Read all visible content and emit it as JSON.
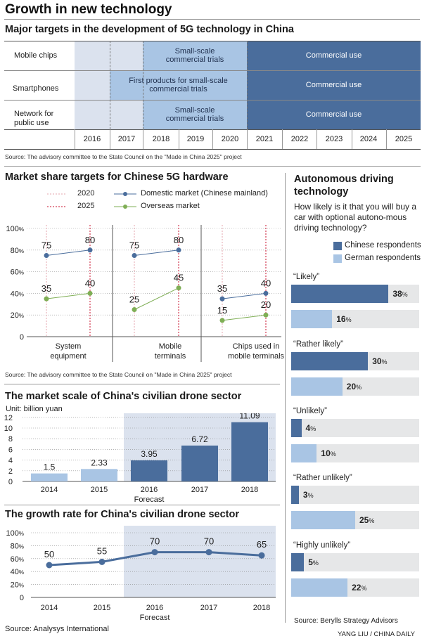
{
  "title": "Growth in new technology",
  "g5": {
    "title": "Major targets in the development of 5G technology in China",
    "years": [
      "2016",
      "2017",
      "2018",
      "2019",
      "2020",
      "2021",
      "2022",
      "2023",
      "2024",
      "2025"
    ],
    "rows": [
      {
        "label": "Mobile chips",
        "stage1": "Small-scale\ncommercial trials",
        "stage2": "Commercial use"
      },
      {
        "label": "Smartphones",
        "stage1": "First products for small-scale\ncommercial trials",
        "stage2": "Commercial use"
      },
      {
        "label": "Network for\npublic use",
        "stage1": "Small-scale\ncommercial trials",
        "stage2": "Commercial use"
      }
    ],
    "source": "Source: The advisory committee to the State Council on the \"Made in China 2025\" project"
  },
  "market": {
    "title": "Market share targets for Chinese 5G hardware",
    "legend": {
      "y2020": "2020",
      "y2025": "2025",
      "domestic": "Domestic market (Chinese mainland)",
      "overseas": "Overseas market"
    },
    "source": "Source: The advisory committee to the State Council on \"Made in China 2025\" project"
  },
  "drone": {
    "title": "The market scale of China's civilian drone sector",
    "unit": "Unit: billion yuan",
    "forecast": "Forecast"
  },
  "growth": {
    "title": "The growth rate for China's civilian drone sector",
    "forecast": "Forecast",
    "source": "Source: Analysys International"
  },
  "auto": {
    "title": "Autonomous driving technology",
    "question": "How likely is it that you will buy a car with optional autono-mous driving technology?",
    "legend_cn": "Chinese respondents",
    "legend_de": "German respondents",
    "source": "Source: Berylls Strategy Advisors"
  },
  "credit": "YANG LIU / CHINA DAILY",
  "colors": {
    "dark": "#4a6d9c",
    "light": "#a9c5e4",
    "lighter": "#c7d6ea",
    "shade": "#dbe2ee",
    "green": "#7fae55",
    "red": "#c8102e"
  },
  "chart_data": [
    {
      "type": "line",
      "title": "Market share targets for Chinese 5G hardware",
      "categories": [
        "System\nequipment",
        "Mobile\nterminals",
        "Chips used in\nmobile terminals"
      ],
      "points": [
        "2020",
        "2025"
      ],
      "series": [
        {
          "name": "Domestic market (Chinese mainland)",
          "values": [
            [
              75,
              80
            ],
            [
              75,
              80
            ],
            [
              35,
              40
            ]
          ]
        },
        {
          "name": "Overseas market",
          "values": [
            [
              35,
              40
            ],
            [
              25,
              45
            ],
            [
              15,
              20
            ]
          ]
        }
      ],
      "yticks": [
        "0",
        "20%",
        "40%",
        "60%",
        "80%",
        "100%"
      ],
      "ylim": [
        0,
        100
      ]
    },
    {
      "type": "bar",
      "title": "The market scale of China's civilian drone sector",
      "categories": [
        "2014",
        "2015",
        "2016",
        "2017",
        "2018"
      ],
      "values": [
        1.5,
        2.33,
        3.95,
        6.72,
        11.09
      ],
      "labels": [
        "1.5",
        "2.33",
        "3.95",
        "6.72",
        "11.09"
      ],
      "yticks": [
        "0",
        "2",
        "4",
        "6",
        "8",
        "10",
        "12"
      ],
      "ylim": [
        0,
        12
      ],
      "ylabel": "Unit: billion yuan"
    },
    {
      "type": "line",
      "title": "The growth rate for China's civilian drone sector",
      "categories": [
        "2014",
        "2015",
        "2016",
        "2017",
        "2018"
      ],
      "values": [
        50,
        55,
        70,
        70,
        65
      ],
      "yticks": [
        "0",
        "20%",
        "40%",
        "60%",
        "80%",
        "100%"
      ],
      "ylim": [
        0,
        100
      ]
    },
    {
      "type": "bar",
      "title": "How likely is it that you will buy a car with optional autonomous driving technology?",
      "categories": [
        "“Likely”",
        "“Rather likely”",
        "“Unlikely”",
        "“Rather unlikely”",
        "“Highly unlikely”"
      ],
      "series": [
        {
          "name": "Chinese respondents",
          "values": [
            38,
            30,
            4,
            3,
            5
          ]
        },
        {
          "name": "German respondents",
          "values": [
            16,
            20,
            10,
            25,
            22
          ]
        }
      ]
    }
  ]
}
